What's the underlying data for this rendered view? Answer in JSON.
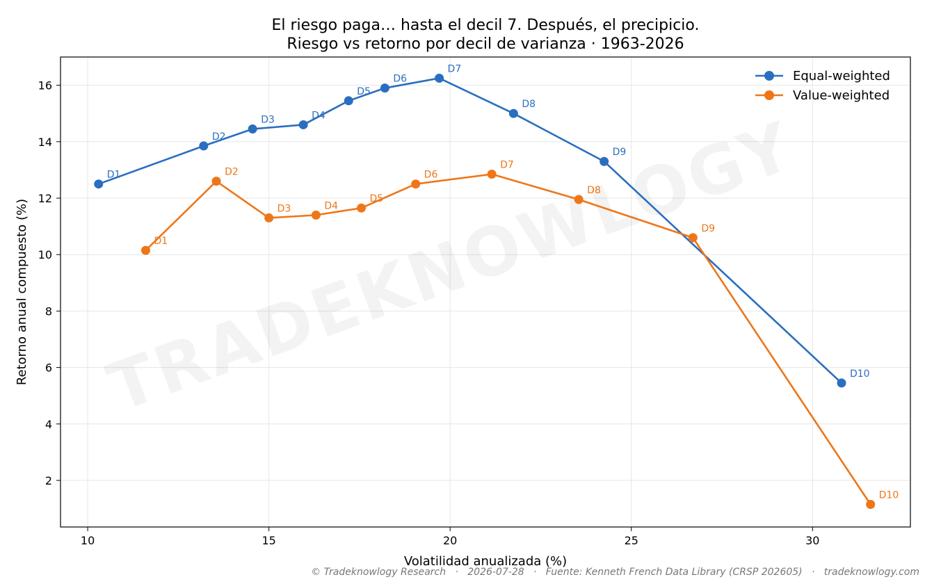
{
  "chart_data": {
    "type": "line",
    "title": "El riesgo paga… hasta el decil 7. Después, el precipicio.",
    "subtitle": "Riesgo vs retorno por decil de varianza · 1963-2026",
    "xlabel": "Volatilidad anualizada (%)",
    "ylabel": "Retorno anual compuesto (%)",
    "xlim": [
      9.25,
      32.7
    ],
    "ylim": [
      0.35,
      17.0
    ],
    "xticks": [
      10,
      15,
      20,
      25,
      30
    ],
    "yticks": [
      2,
      4,
      6,
      8,
      10,
      12,
      14,
      16
    ],
    "grid": true,
    "legend_position": "top-right",
    "watermark": "TRADEKNOWLOGY",
    "series": [
      {
        "name": "Equal-weighted",
        "color": "#2a6ebf",
        "points": [
          {
            "label": "D1",
            "x": 10.3,
            "y": 12.5
          },
          {
            "label": "D2",
            "x": 13.2,
            "y": 13.85
          },
          {
            "label": "D3",
            "x": 14.55,
            "y": 14.45
          },
          {
            "label": "D4",
            "x": 15.95,
            "y": 14.6
          },
          {
            "label": "D5",
            "x": 17.2,
            "y": 15.45
          },
          {
            "label": "D6",
            "x": 18.2,
            "y": 15.9
          },
          {
            "label": "D7",
            "x": 19.7,
            "y": 16.25
          },
          {
            "label": "D8",
            "x": 21.75,
            "y": 15.0
          },
          {
            "label": "D9",
            "x": 24.25,
            "y": 13.3
          },
          {
            "label": "D10",
            "x": 30.8,
            "y": 5.45
          }
        ]
      },
      {
        "name": "Value-weighted",
        "color": "#ee7618",
        "points": [
          {
            "label": "D1",
            "x": 11.6,
            "y": 10.15
          },
          {
            "label": "D2",
            "x": 13.55,
            "y": 12.6
          },
          {
            "label": "D3",
            "x": 15.0,
            "y": 11.3
          },
          {
            "label": "D4",
            "x": 16.3,
            "y": 11.4
          },
          {
            "label": "D5",
            "x": 17.55,
            "y": 11.65
          },
          {
            "label": "D6",
            "x": 19.05,
            "y": 12.5
          },
          {
            "label": "D7",
            "x": 21.15,
            "y": 12.85
          },
          {
            "label": "D8",
            "x": 23.55,
            "y": 11.95
          },
          {
            "label": "D9",
            "x": 26.7,
            "y": 10.6
          },
          {
            "label": "D10",
            "x": 31.6,
            "y": 1.15
          }
        ]
      }
    ]
  },
  "footer": {
    "copyright": "© Tradeknowlogy Research",
    "date": "2026-07-28",
    "source": "Fuente: Kenneth French Data Library (CRSP 202605)",
    "site": "tradeknowlogy.com"
  }
}
